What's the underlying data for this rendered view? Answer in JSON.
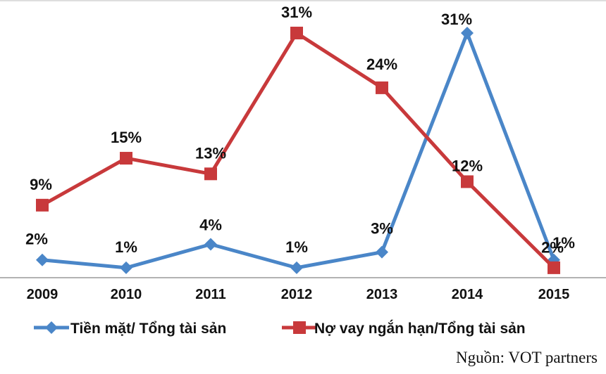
{
  "chart_data": {
    "type": "line",
    "categories": [
      "2009",
      "2010",
      "2011",
      "2012",
      "2013",
      "2014",
      "2015"
    ],
    "series": [
      {
        "name": "Tiền mặt/ Tổng tài sản",
        "color": "#4a86c8",
        "marker": "diamond",
        "values": [
          0.02,
          0.01,
          0.04,
          0.01,
          0.03,
          0.31,
          0.02
        ],
        "labels": [
          "2%",
          "1%",
          "4%",
          "1%",
          "3%",
          "31%",
          "2%"
        ]
      },
      {
        "name": "Nợ vay ngắn hạn/Tổng tài sản",
        "color": "#c8393b",
        "marker": "square",
        "values": [
          0.09,
          0.15,
          0.13,
          0.31,
          0.24,
          0.12,
          0.01
        ],
        "labels": [
          "9%",
          "15%",
          "13%",
          "31%",
          "24%",
          "12%",
          "1%"
        ]
      }
    ],
    "legend_position": "bottom",
    "grid": false
  },
  "source": "Nguồn: VOT partners"
}
